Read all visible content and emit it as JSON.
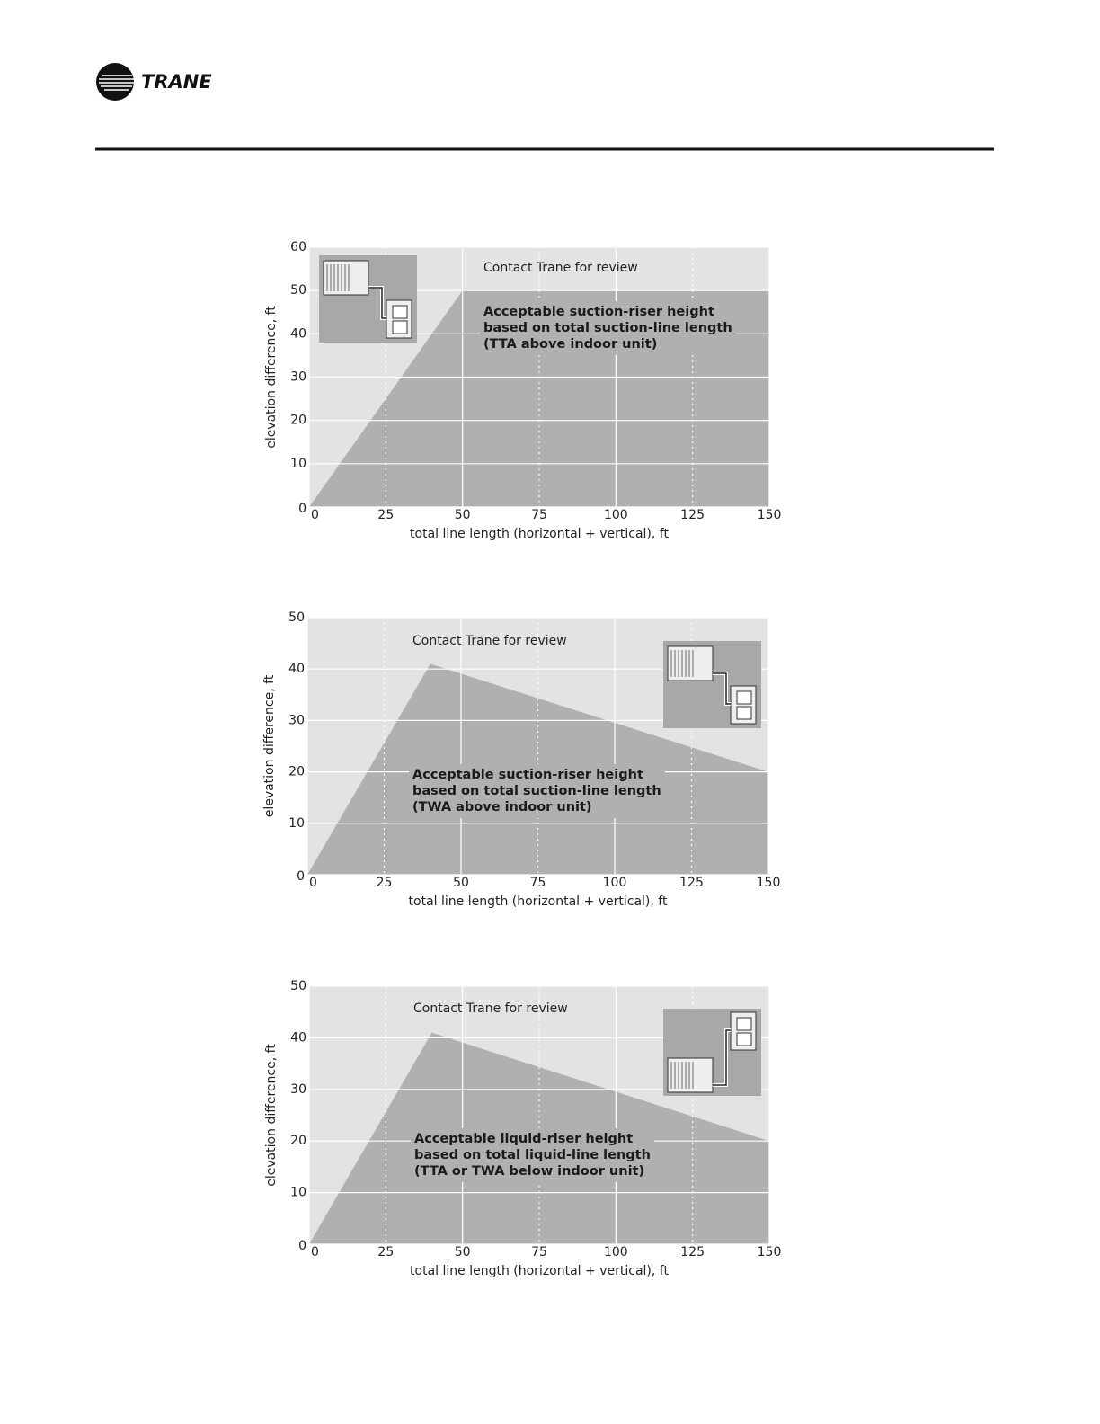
{
  "header": {
    "logo": "TRANE"
  },
  "chart_data": [
    {
      "type": "area",
      "x": [
        0,
        50,
        150
      ],
      "values": [
        0,
        50,
        50
      ],
      "color": "#b0b0b0",
      "xlim": [
        0,
        150
      ],
      "ylim": [
        0,
        60
      ],
      "xticks": [
        0,
        25,
        50,
        75,
        100,
        125,
        150
      ],
      "yticks": [
        0,
        10,
        20,
        30,
        40,
        50,
        60
      ],
      "xlabel": "total line length (horizontal + vertical), ft",
      "ylabel": "elevation difference, ft",
      "annotation": "Contact Trane for review",
      "area_label": [
        "Acceptable suction-riser height",
        "based on total suction-line length",
        "(TTA above indoor unit)"
      ],
      "grid": true
    },
    {
      "type": "area",
      "x": [
        0,
        40,
        150
      ],
      "values": [
        0,
        41,
        20
      ],
      "color": "#b0b0b0",
      "xlim": [
        0,
        150
      ],
      "ylim": [
        0,
        50
      ],
      "xticks": [
        0,
        25,
        50,
        75,
        100,
        125,
        150
      ],
      "yticks": [
        0,
        10,
        20,
        30,
        40,
        50
      ],
      "xlabel": "total line length (horizontal + vertical), ft",
      "ylabel": "elevation difference, ft",
      "annotation": "Contact Trane for review",
      "area_label": [
        "Acceptable suction-riser height",
        "based on total suction-line length",
        "(TWA above indoor unit)"
      ],
      "grid": true
    },
    {
      "type": "area",
      "x": [
        0,
        40,
        150
      ],
      "values": [
        0,
        41,
        20
      ],
      "color": "#b0b0b0",
      "xlim": [
        0,
        150
      ],
      "ylim": [
        0,
        50
      ],
      "xticks": [
        0,
        25,
        50,
        75,
        100,
        125,
        150
      ],
      "yticks": [
        0,
        10,
        20,
        30,
        40,
        50
      ],
      "xlabel": "total line length (horizontal + vertical), ft",
      "ylabel": "elevation difference, ft",
      "annotation": "Contact Trane for review",
      "area_label": [
        "Acceptable liquid-riser height",
        "based on total liquid-line length",
        "(TTA or TWA below indoor unit)"
      ],
      "grid": true
    }
  ]
}
